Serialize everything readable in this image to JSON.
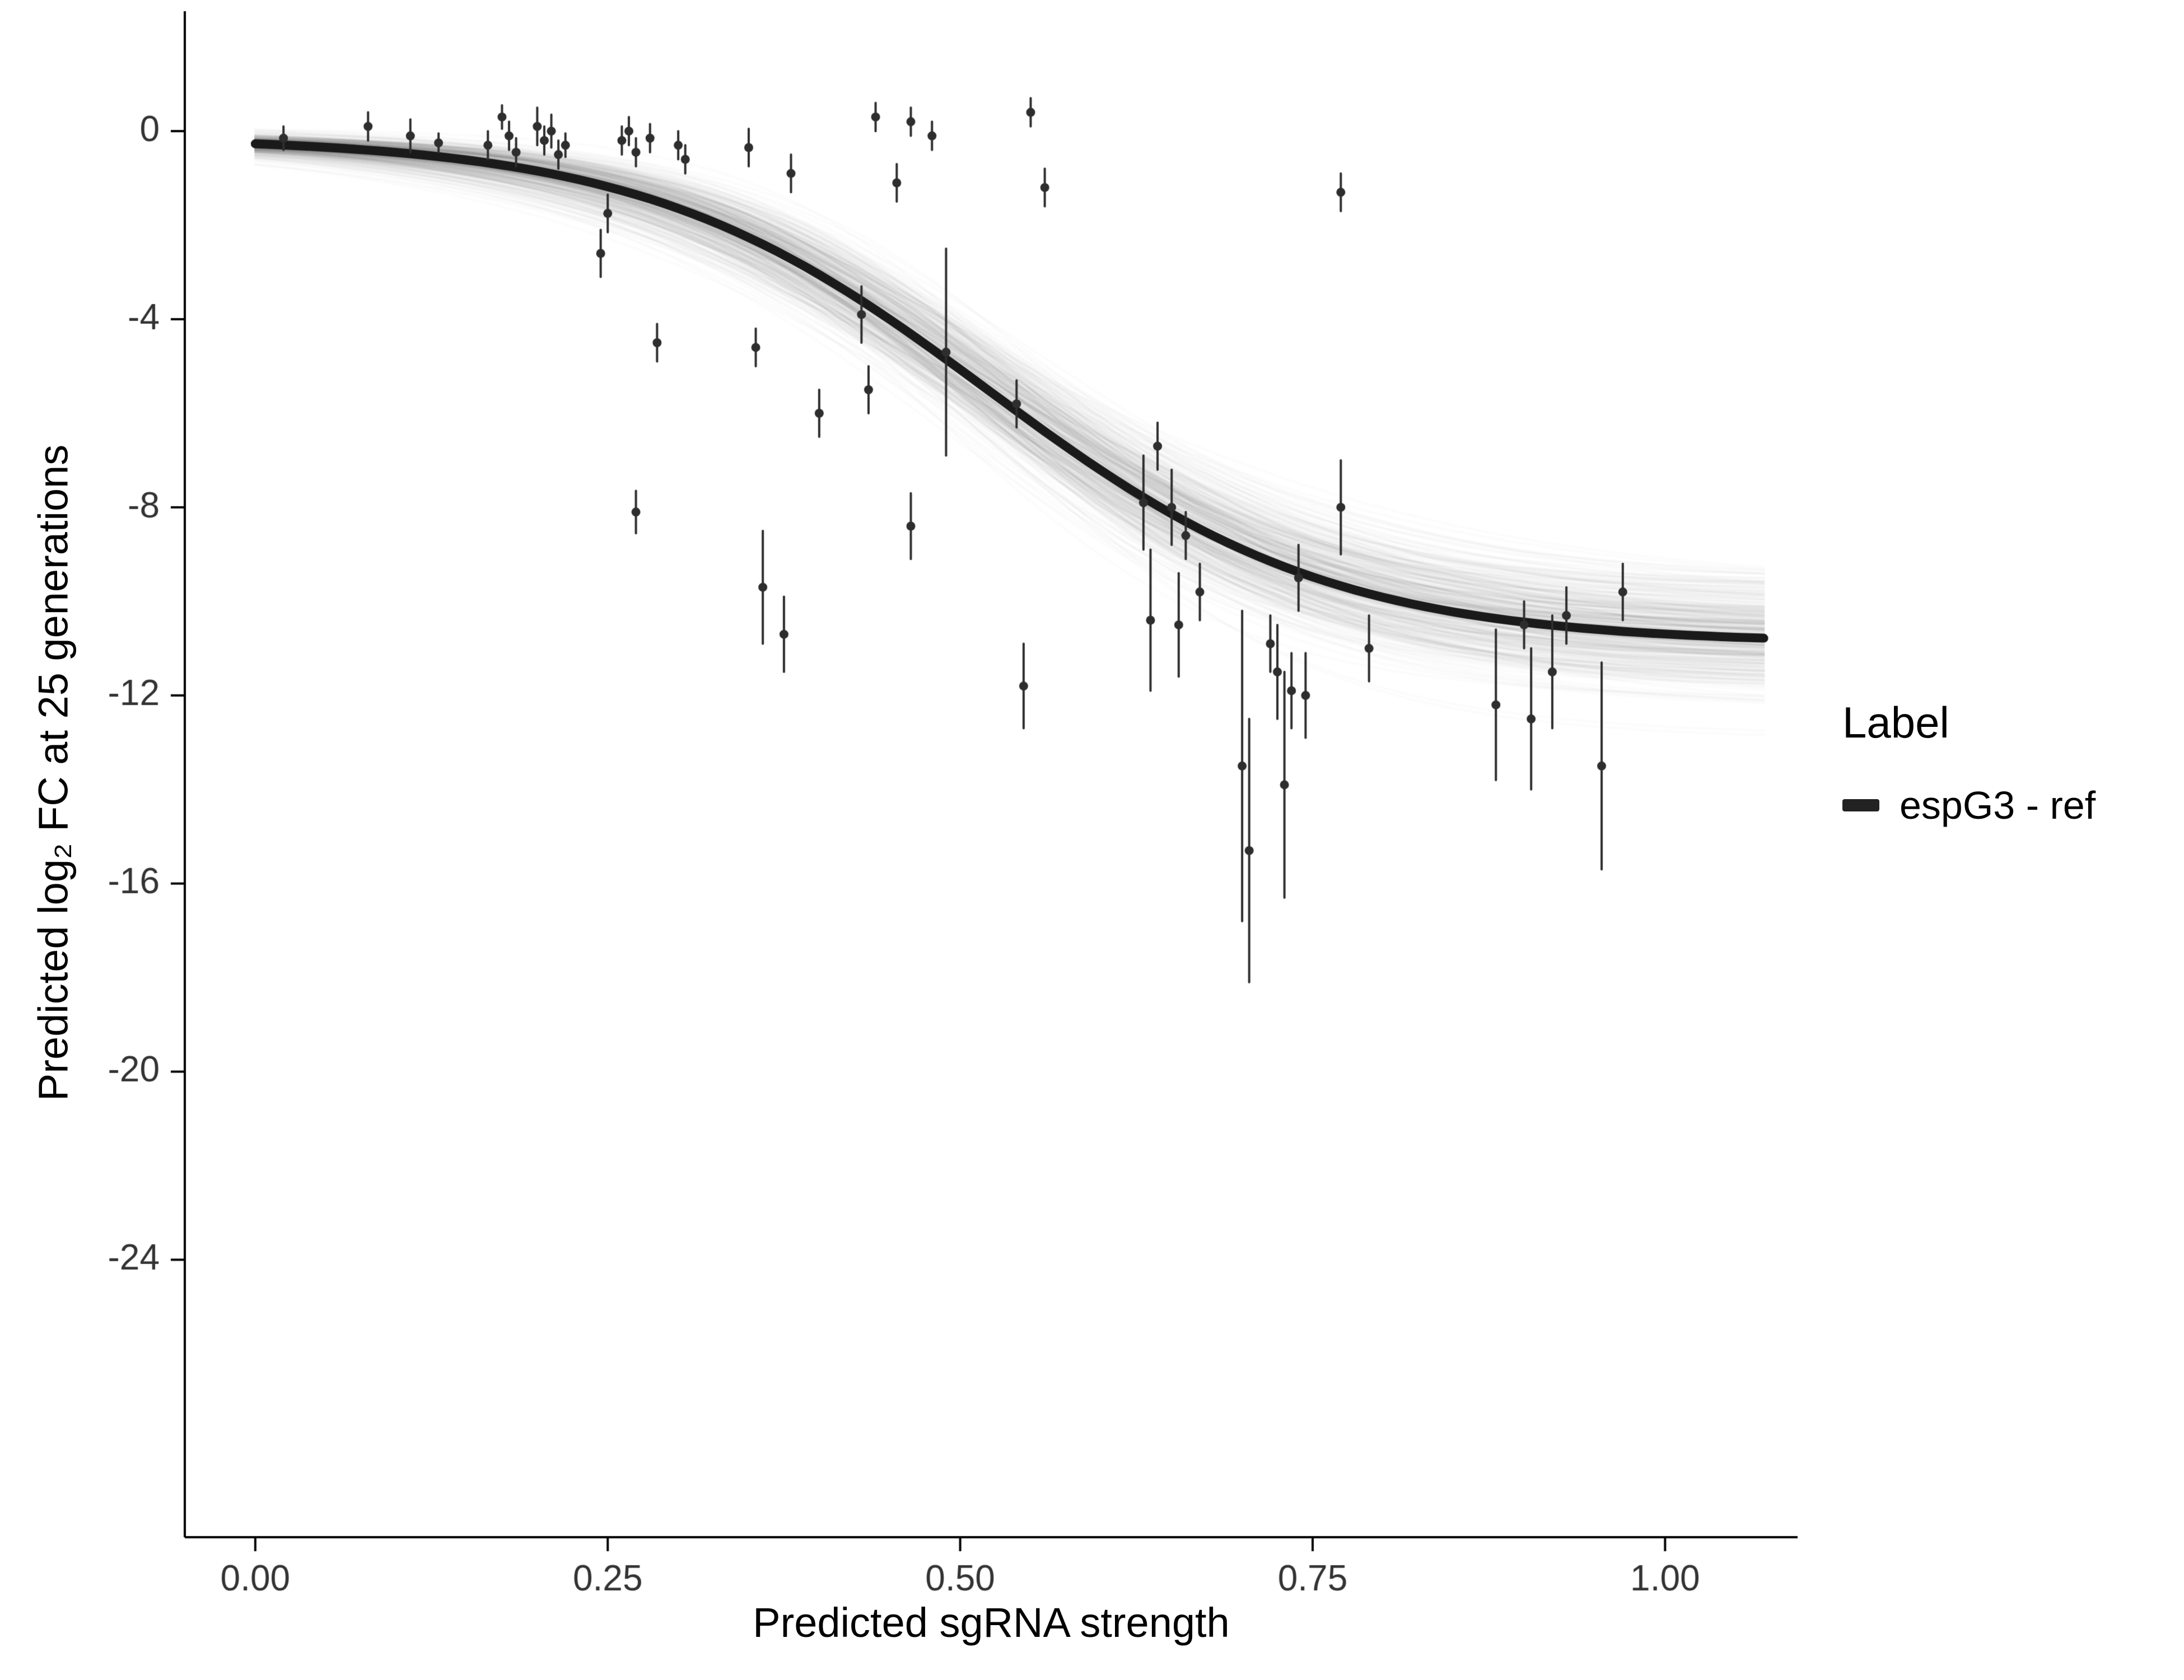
{
  "figure": {
    "background": "#ffffff",
    "xlabel": "Predicted sgRNA strength",
    "ylabel": "Predicted  log₂ FC at 25 generations",
    "legend": {
      "title": "Label",
      "entries": [
        {
          "label": "espG3 - ref",
          "color": "#222222",
          "swatch": "thick-line"
        }
      ]
    }
  },
  "chart_data": {
    "type": "scatter",
    "title": "",
    "xlabel": "Predicted sgRNA strength",
    "ylabel": "Predicted  log₂ FC at 25 generations",
    "grid": false,
    "legend_position": "right",
    "xlim": [
      -0.05,
      1.094
    ],
    "ylim": [
      -29.9,
      2.55
    ],
    "x_ticks": {
      "values": [
        0,
        0.25,
        0.5,
        0.75,
        1.0
      ],
      "labels": [
        "0.00",
        "0.25",
        "0.50",
        "0.75",
        "1.00"
      ]
    },
    "y_ticks": {
      "values": [
        0,
        -4,
        -8,
        -12,
        -16,
        -20,
        -24
      ],
      "labels": [
        "0",
        "-4",
        "-8",
        "-12",
        "-16",
        "-20",
        "-24"
      ]
    },
    "axis_color": "#000000",
    "tick_label_color": "#333333",
    "point_color": "#2e2e2e",
    "fit_curve": {
      "shape": "sigmoid",
      "top": -0.12,
      "bottom": -10.9,
      "midpoint": 0.52,
      "slope": 8.2,
      "x_start": 0.0,
      "x_end": 1.07,
      "color": "#1a1a1a",
      "width": 16
    },
    "uncertainty_band": {
      "style": "posterior-draws",
      "n_draws": 450,
      "sd_top": 0.09,
      "sd_bottom": 0.62,
      "sd_midpoint": 0.021,
      "sd_slope": 0.95,
      "color": "rgba(120,120,120,0.02)",
      "line_width": 4,
      "seed": 42
    },
    "points": [
      {
        "x": 0.02,
        "y": -0.15,
        "err": 0.25
      },
      {
        "x": 0.08,
        "y": 0.1,
        "err": 0.3
      },
      {
        "x": 0.11,
        "y": -0.1,
        "err": 0.35
      },
      {
        "x": 0.13,
        "y": -0.25,
        "err": 0.2
      },
      {
        "x": 0.165,
        "y": -0.3,
        "err": 0.3
      },
      {
        "x": 0.175,
        "y": 0.3,
        "err": 0.25
      },
      {
        "x": 0.18,
        "y": -0.1,
        "err": 0.3
      },
      {
        "x": 0.185,
        "y": -0.45,
        "err": 0.3
      },
      {
        "x": 0.2,
        "y": 0.1,
        "err": 0.4
      },
      {
        "x": 0.205,
        "y": -0.2,
        "err": 0.3
      },
      {
        "x": 0.21,
        "y": 0.0,
        "err": 0.35
      },
      {
        "x": 0.215,
        "y": -0.5,
        "err": 0.3
      },
      {
        "x": 0.22,
        "y": -0.3,
        "err": 0.25
      },
      {
        "x": 0.245,
        "y": -2.6,
        "err": 0.5
      },
      {
        "x": 0.25,
        "y": -1.75,
        "err": 0.4
      },
      {
        "x": 0.26,
        "y": -0.2,
        "err": 0.3
      },
      {
        "x": 0.265,
        "y": 0.0,
        "err": 0.3
      },
      {
        "x": 0.27,
        "y": -0.45,
        "err": 0.3
      },
      {
        "x": 0.27,
        "y": -8.1,
        "err": 0.45
      },
      {
        "x": 0.28,
        "y": -0.15,
        "err": 0.3
      },
      {
        "x": 0.285,
        "y": -4.5,
        "err": 0.4
      },
      {
        "x": 0.3,
        "y": -0.3,
        "err": 0.3
      },
      {
        "x": 0.305,
        "y": -0.6,
        "err": 0.3
      },
      {
        "x": 0.35,
        "y": -0.35,
        "err": 0.4
      },
      {
        "x": 0.355,
        "y": -4.6,
        "err": 0.4
      },
      {
        "x": 0.36,
        "y": -9.7,
        "err": 1.2
      },
      {
        "x": 0.375,
        "y": -10.7,
        "err": 0.8
      },
      {
        "x": 0.38,
        "y": -0.9,
        "err": 0.4
      },
      {
        "x": 0.4,
        "y": -6.0,
        "err": 0.5
      },
      {
        "x": 0.43,
        "y": -3.9,
        "err": 0.6
      },
      {
        "x": 0.435,
        "y": -5.5,
        "err": 0.5
      },
      {
        "x": 0.44,
        "y": 0.3,
        "err": 0.3
      },
      {
        "x": 0.455,
        "y": -1.1,
        "err": 0.4
      },
      {
        "x": 0.465,
        "y": 0.2,
        "err": 0.3
      },
      {
        "x": 0.465,
        "y": -8.4,
        "err": 0.7
      },
      {
        "x": 0.48,
        "y": -0.1,
        "err": 0.3
      },
      {
        "x": 0.49,
        "y": -4.7,
        "err": 2.2
      },
      {
        "x": 0.54,
        "y": -5.8,
        "err": 0.5
      },
      {
        "x": 0.545,
        "y": -11.8,
        "err": 0.9
      },
      {
        "x": 0.55,
        "y": 0.4,
        "err": 0.3
      },
      {
        "x": 0.56,
        "y": -1.2,
        "err": 0.4
      },
      {
        "x": 0.63,
        "y": -7.9,
        "err": 1.0
      },
      {
        "x": 0.635,
        "y": -10.4,
        "err": 1.5
      },
      {
        "x": 0.64,
        "y": -6.7,
        "err": 0.5
      },
      {
        "x": 0.65,
        "y": -8.0,
        "err": 0.8
      },
      {
        "x": 0.655,
        "y": -10.5,
        "err": 1.1
      },
      {
        "x": 0.66,
        "y": -8.6,
        "err": 0.5
      },
      {
        "x": 0.67,
        "y": -9.8,
        "err": 0.6
      },
      {
        "x": 0.7,
        "y": -13.5,
        "err": 3.3
      },
      {
        "x": 0.705,
        "y": -15.3,
        "err": 2.8
      },
      {
        "x": 0.72,
        "y": -10.9,
        "err": 0.6
      },
      {
        "x": 0.725,
        "y": -11.5,
        "err": 1.0
      },
      {
        "x": 0.73,
        "y": -13.9,
        "err": 2.4
      },
      {
        "x": 0.735,
        "y": -11.9,
        "err": 0.8
      },
      {
        "x": 0.74,
        "y": -9.5,
        "err": 0.7
      },
      {
        "x": 0.745,
        "y": -12.0,
        "err": 0.9
      },
      {
        "x": 0.77,
        "y": -1.3,
        "err": 0.4
      },
      {
        "x": 0.77,
        "y": -8.0,
        "err": 1.0
      },
      {
        "x": 0.79,
        "y": -11.0,
        "err": 0.7
      },
      {
        "x": 0.88,
        "y": -12.2,
        "err": 1.6
      },
      {
        "x": 0.9,
        "y": -10.5,
        "err": 0.5
      },
      {
        "x": 0.905,
        "y": -12.5,
        "err": 1.5
      },
      {
        "x": 0.92,
        "y": -11.5,
        "err": 1.2
      },
      {
        "x": 0.93,
        "y": -10.3,
        "err": 0.6
      },
      {
        "x": 0.955,
        "y": -13.5,
        "err": 2.2
      },
      {
        "x": 0.97,
        "y": -9.8,
        "err": 0.6
      }
    ],
    "legend": {
      "title": "Label",
      "entries": [
        {
          "label": "espG3 - ref"
        }
      ]
    }
  }
}
